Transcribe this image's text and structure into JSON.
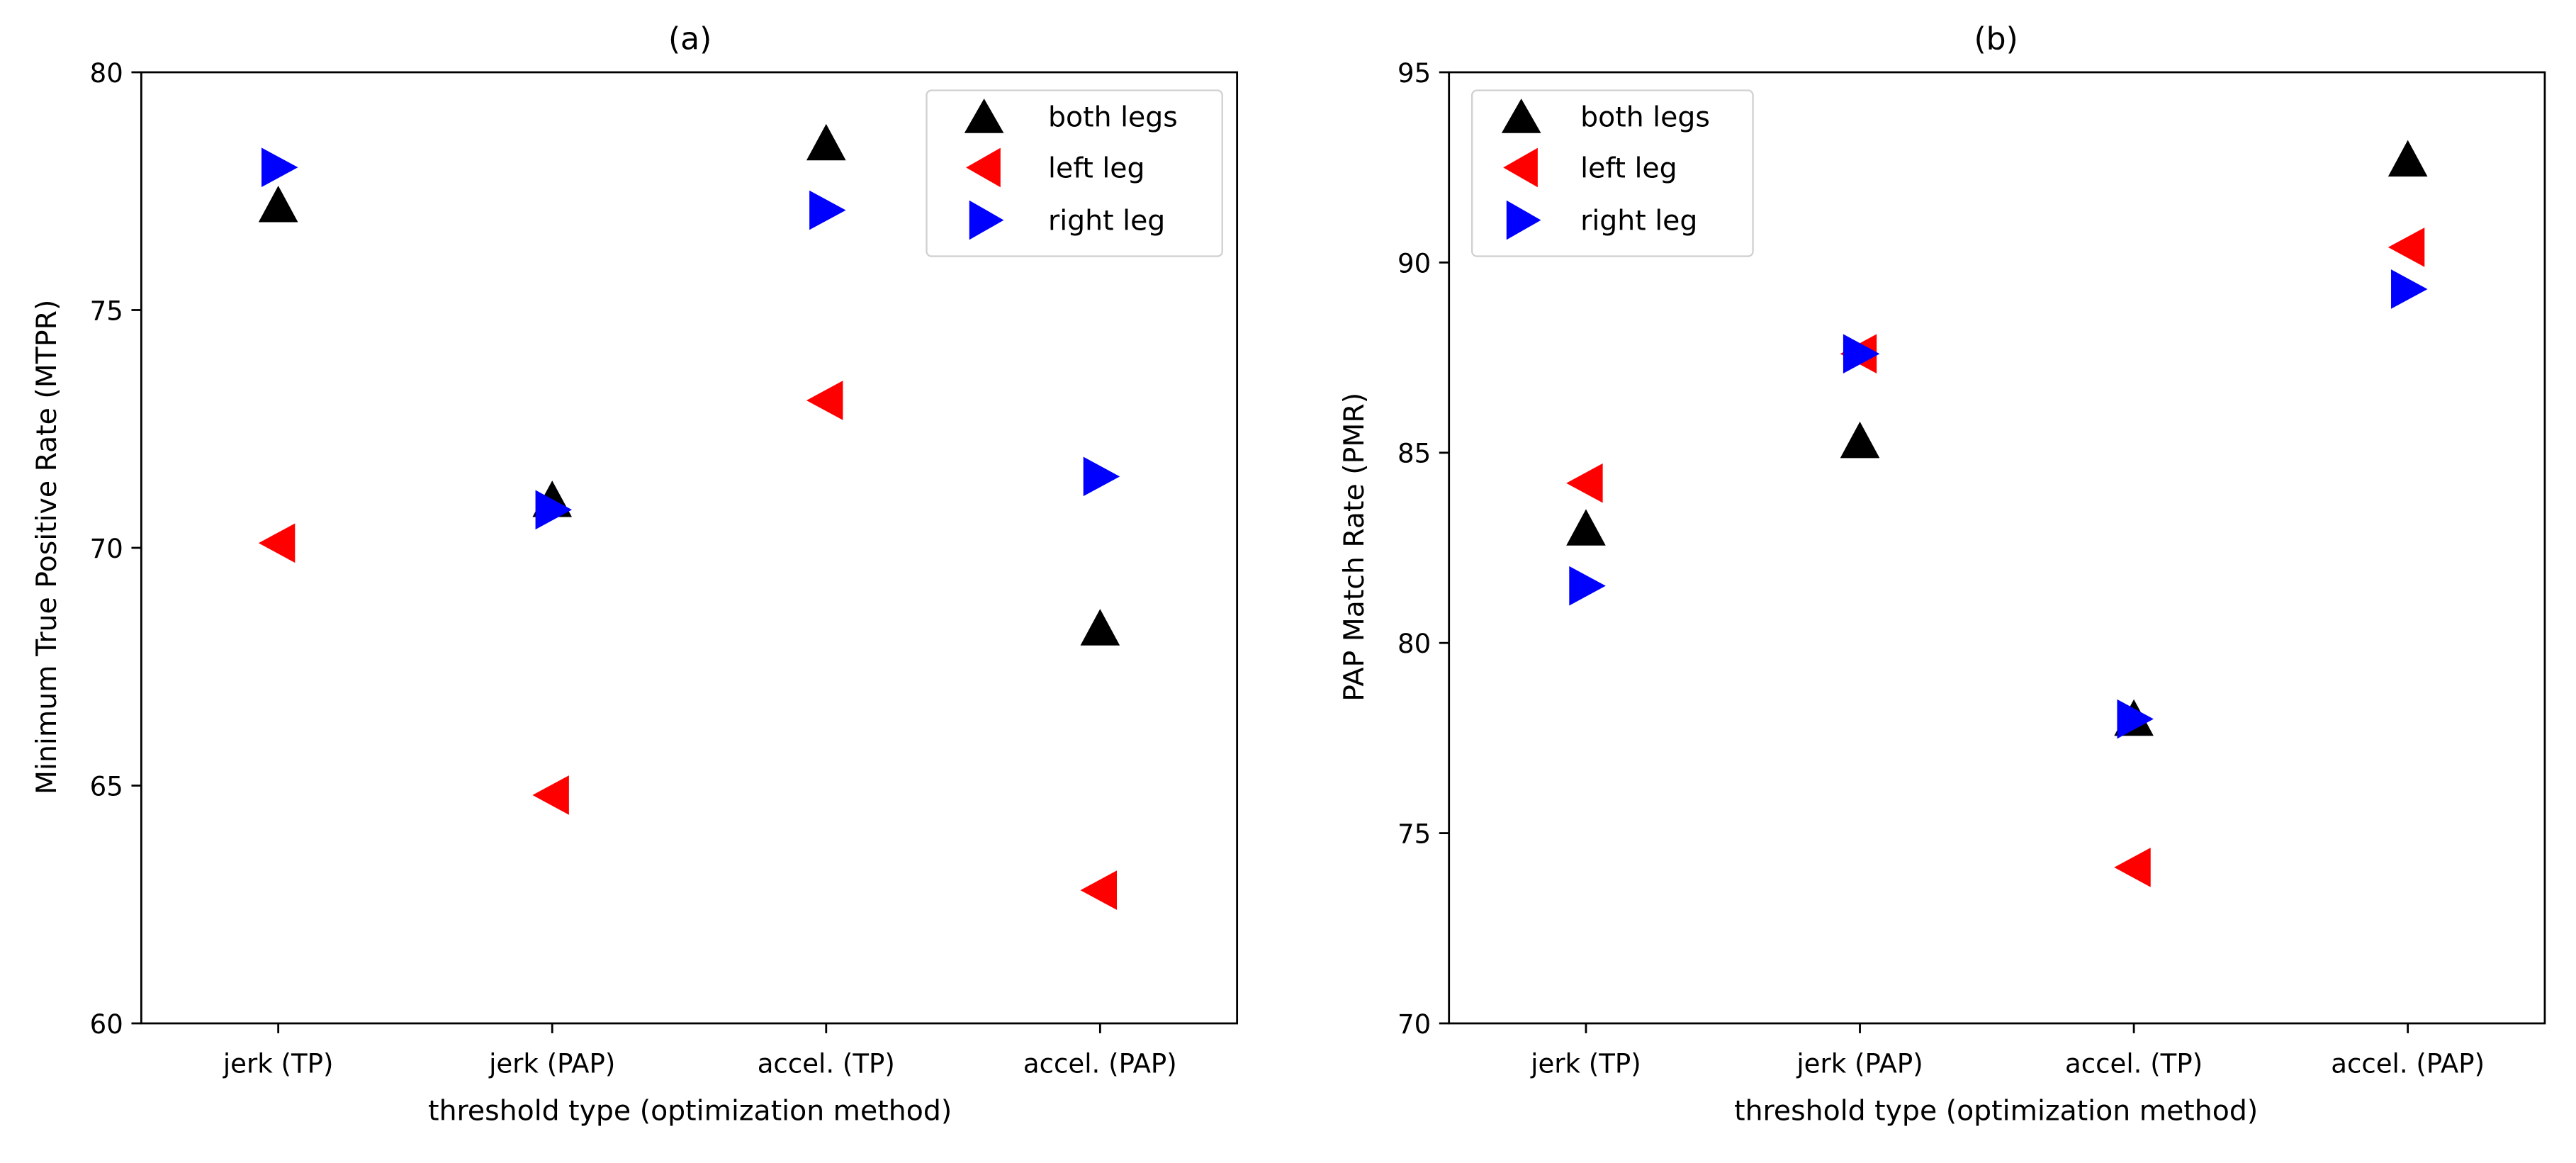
{
  "figure": {
    "panels": [
      "(a)",
      "(b)"
    ]
  },
  "chart_data": [
    {
      "type": "scatter",
      "title": "(a)",
      "xlabel": "threshold type (optimization method)",
      "ylabel": "Minimum True Positive Rate (MTPR)",
      "categories": [
        "jerk (TP)",
        "jerk (PAP)",
        "accel. (TP)",
        "accel. (PAP)"
      ],
      "ylim": [
        60,
        80
      ],
      "yticks": [
        "60",
        "65",
        "70",
        "75",
        "80"
      ],
      "legend_position": "top-right",
      "series": [
        {
          "name": "both legs",
          "marker": "triangle-up",
          "color": "#000000",
          "values": [
            77.2,
            71.0,
            78.5,
            68.3
          ]
        },
        {
          "name": "left leg",
          "marker": "triangle-left",
          "color": "#ff0000",
          "values": [
            70.1,
            64.8,
            73.1,
            62.8
          ]
        },
        {
          "name": "right leg",
          "marker": "triangle-right",
          "color": "#0000ff",
          "values": [
            78.0,
            70.8,
            77.1,
            71.5
          ]
        }
      ]
    },
    {
      "type": "scatter",
      "title": "(b)",
      "xlabel": "threshold type (optimization method)",
      "ylabel": "PAP Match Rate (PMR)",
      "categories": [
        "jerk (TP)",
        "jerk (PAP)",
        "accel. (TP)",
        "accel. (PAP)"
      ],
      "ylim": [
        70,
        95
      ],
      "yticks": [
        "70",
        "75",
        "80",
        "85",
        "90",
        "95"
      ],
      "legend_position": "top-left",
      "series": [
        {
          "name": "both legs",
          "marker": "triangle-up",
          "color": "#000000",
          "values": [
            83.0,
            85.3,
            78.0,
            92.7
          ]
        },
        {
          "name": "left leg",
          "marker": "triangle-left",
          "color": "#ff0000",
          "values": [
            84.2,
            87.6,
            74.1,
            90.4
          ]
        },
        {
          "name": "right leg",
          "marker": "triangle-right",
          "color": "#0000ff",
          "values": [
            81.5,
            87.6,
            78.0,
            89.3
          ]
        }
      ]
    }
  ]
}
